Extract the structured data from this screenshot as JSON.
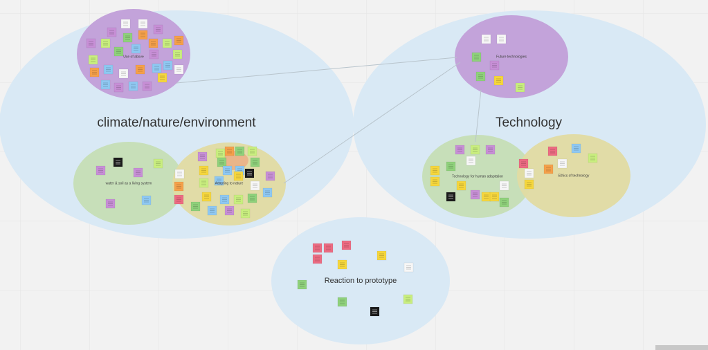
{
  "clusters": [
    {
      "label": "climate/nature/environment",
      "groups": [
        {
          "label": "Use of above"
        },
        {
          "label": "water & soil as a living system"
        },
        {
          "label": "Adapting to nature"
        }
      ]
    },
    {
      "label": "Technology",
      "groups": [
        {
          "label": "Future technologies"
        },
        {
          "label": "Technology for human adaptation"
        },
        {
          "label": "Ethics of technology"
        }
      ]
    },
    {
      "label": "Reaction to prototype",
      "groups": []
    }
  ]
}
